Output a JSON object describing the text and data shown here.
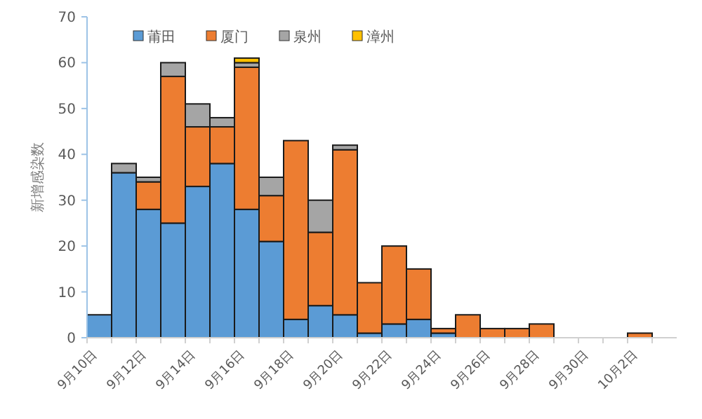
{
  "chart_data": {
    "type": "bar",
    "stacked": true,
    "ylabel": "新增感染数",
    "categories": [
      "9月10日",
      null,
      "9月12日",
      null,
      "9月14日",
      null,
      "9月16日",
      null,
      "9月18日",
      null,
      "9月20日",
      null,
      "9月22日",
      null,
      "9月24日",
      null,
      "9月26日",
      null,
      "9月28日",
      null,
      "9月30日",
      null,
      "10月2日",
      null
    ],
    "series": [
      {
        "name": "莆田",
        "color": "#5b9bd5",
        "values": [
          5,
          36,
          28,
          25,
          33,
          38,
          28,
          21,
          4,
          7,
          5,
          1,
          3,
          4,
          1,
          0,
          0,
          0,
          0,
          0,
          0,
          0,
          0,
          0
        ]
      },
      {
        "name": "厦门",
        "color": "#ed7d31",
        "values": [
          0,
          0,
          6,
          32,
          13,
          8,
          31,
          10,
          39,
          16,
          36,
          11,
          17,
          11,
          1,
          5,
          2,
          2,
          3,
          0,
          0,
          0,
          1,
          0
        ]
      },
      {
        "name": "泉州",
        "color": "#a5a5a5",
        "values": [
          0,
          2,
          1,
          3,
          5,
          2,
          1,
          4,
          0,
          7,
          1,
          0,
          0,
          0,
          0,
          0,
          0,
          0,
          0,
          0,
          0,
          0,
          0,
          0
        ]
      },
      {
        "name": "漳州",
        "color": "#ffc000",
        "values": [
          0,
          0,
          0,
          0,
          0,
          0,
          1,
          0,
          0,
          0,
          0,
          0,
          0,
          0,
          0,
          0,
          0,
          0,
          0,
          0,
          0,
          0,
          0,
          0
        ]
      }
    ],
    "ylim": [
      0,
      70
    ],
    "yticks": [
      0,
      10,
      20,
      30,
      40,
      50,
      60,
      70
    ],
    "legend": "top"
  }
}
